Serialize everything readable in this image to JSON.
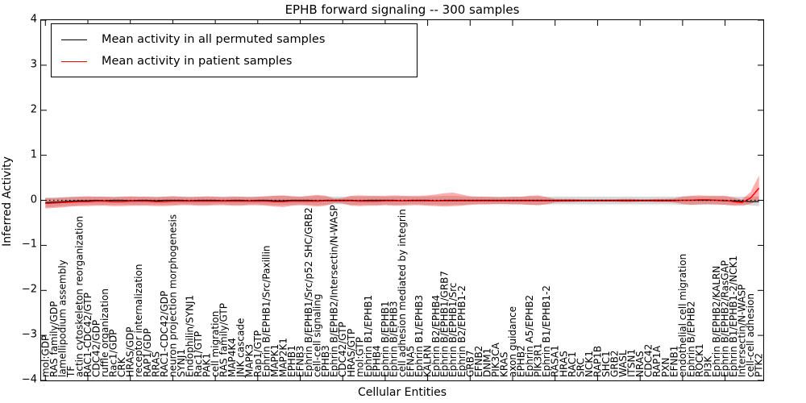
{
  "figure": {
    "title": "EPHB forward signaling -- 300 samples",
    "xlabel": "Cellular Entities",
    "ylabel": "Inferred Activity"
  },
  "legend": {
    "position": "upper left",
    "items": [
      {
        "label": "Mean activity in all permuted samples",
        "color": "#000000"
      },
      {
        "label": "Mean activity in patient samples",
        "color": "#ff0000"
      }
    ]
  },
  "chart_data": {
    "type": "line",
    "title": "EPHB forward signaling -- 300 samples",
    "xlabel": "Cellular Entities",
    "ylabel": "Inferred Activity",
    "ylim": [
      -4,
      4
    ],
    "yticks": [
      4,
      3,
      2,
      1,
      0,
      -1,
      -2,
      -3,
      -4
    ],
    "grid": false,
    "legend_position": "upper left",
    "zero_line": {
      "y": 0,
      "style": "dotted",
      "color": "#000000"
    },
    "xtick_step": 5,
    "categories": [
      "mol:GDP",
      "RAS family/GDP",
      "lamellipodium assembly",
      "TF",
      "actin cytoskeleton reorganization",
      "RAC1-CDC42/GTP",
      "CDC42/GDP",
      "ruffle organization",
      "Rac1/GDP",
      "CRK",
      "HRAS/GDP",
      "receptor internalization",
      "RAP1/GDP",
      "RRAS",
      "RAC1-CDC42/GDP",
      "neuron projection morphogenesis",
      "SYNJ1",
      "Endophilin/SYNJ1",
      "Rac1/GTP",
      "PAK1",
      "cell migration",
      "RAS family/GTP",
      "MAP4K4",
      "JNK cascade",
      "MAPK3",
      "Rap1/GTP",
      "Ephrin B/EPHB1/Src/Paxillin",
      "MAPK1",
      "MAP2K1",
      "EPHB1",
      "EFNB3",
      "Ephrin B/EPHB1/Src/p52 SHC/GRB2",
      "cell-cell signaling",
      "EPHB3",
      "Ephrin B/EPHB2/Intersectin/N-WASP",
      "CDC42/GTP",
      "HRAS/GTP",
      "mol:GTP",
      "Ephrin B1/EPHB1",
      "EPHB4",
      "Ephrin B/EPHB1",
      "Ephrin B/EPHB3",
      "cell adhesion mediated by integrin",
      "EFNA5",
      "Ephrin B1/EPHB3",
      "KALRN",
      "Ephrin B2/EPHB4",
      "Ephrin B/EPHB1/GRB7",
      "Ephrin B/EPHB1/Src",
      "Ephrin B2/EPHB1-2",
      "GRB7",
      "EFNB2",
      "DNM1",
      "PIK3CA",
      "KRAS",
      "axon guidance",
      "EPHB2",
      "Ephrin A5/EPHB2",
      "PIK3R1",
      "Ephrin B1/EPHB1-2",
      "RASA1",
      "HRAS",
      "RAC1",
      "SRC",
      "NCK1",
      "RAP1B",
      "SHC1",
      "GRB2",
      "WASL",
      "ITSN1",
      "NRAS",
      "CDC42",
      "RAP1A",
      "PXN",
      "EFNB1",
      "endothelial cell migration",
      "Ephrin B/EPHB2",
      "ROCK1",
      "PI3K",
      "Ephrin B/EPHB2/KALRN",
      "Ephrin B/EPHB2/RasGAP",
      "Ephrin B1/EPHB1-2/NCK1",
      "Intersectin/N-WASP",
      "cell-cell adhesion",
      "PTK2"
    ],
    "series": [
      {
        "name": "Mean activity in all permuted samples",
        "color": "#000000",
        "band_color": "rgba(125,125,125,0.30)",
        "values": [
          -0.05,
          -0.04,
          -0.03,
          -0.02,
          -0.01,
          -0.01,
          0,
          -0.01,
          0,
          0,
          -0.01,
          0,
          0,
          -0.01,
          0,
          0,
          0,
          -0.01,
          0,
          0,
          0,
          -0.01,
          0,
          0,
          -0.01,
          0,
          0,
          -0.01,
          -0.01,
          0,
          0,
          0,
          -0.01,
          0,
          0,
          0,
          0,
          -0.01,
          0,
          0,
          0,
          0,
          -0.01,
          0,
          0,
          0,
          -0.01,
          0,
          0,
          0,
          0,
          0,
          0,
          0,
          0,
          0,
          0,
          0,
          0,
          0,
          0,
          0,
          0,
          0,
          0,
          0,
          0,
          0,
          0,
          0,
          0,
          0,
          0,
          0,
          0,
          0,
          0,
          0,
          0,
          0,
          -0.01,
          -0.01,
          -0.02,
          -0.03,
          -0.03
        ],
        "band_upper": [
          0.06,
          0.06,
          0.07,
          0.08,
          0.08,
          0.08,
          0.08,
          0.08,
          0.08,
          0.08,
          0.08,
          0.08,
          0.08,
          0.08,
          0.08,
          0.09,
          0.08,
          0.08,
          0.08,
          0.08,
          0.08,
          0.08,
          0.09,
          0.08,
          0.08,
          0.08,
          0.09,
          0.1,
          0.1,
          0.09,
          0.08,
          0.09,
          0.1,
          0.09,
          0.08,
          0.08,
          0.09,
          0.09,
          0.09,
          0.09,
          0.08,
          0.09,
          0.09,
          0.08,
          0.08,
          0.09,
          0.09,
          0.1,
          0.1,
          0.09,
          0.08,
          0.08,
          0.08,
          0.08,
          0.08,
          0.08,
          0.08,
          0.09,
          0.09,
          0.08,
          0.08,
          0.08,
          0.08,
          0.08,
          0.08,
          0.08,
          0.08,
          0.08,
          0.08,
          0.08,
          0.08,
          0.08,
          0.08,
          0.08,
          0.08,
          0.09,
          0.09,
          0.09,
          0.09,
          0.09,
          0.09,
          0.08,
          0.08,
          0.08,
          0.08
        ],
        "band_lower": [
          -0.16,
          -0.15,
          -0.13,
          -0.12,
          -0.11,
          -0.1,
          -0.1,
          -0.1,
          -0.1,
          -0.1,
          -0.1,
          -0.1,
          -0.1,
          -0.1,
          -0.1,
          -0.1,
          -0.09,
          -0.09,
          -0.1,
          -0.1,
          -0.09,
          -0.09,
          -0.1,
          -0.1,
          -0.09,
          -0.09,
          -0.1,
          -0.11,
          -0.11,
          -0.1,
          -0.09,
          -0.1,
          -0.11,
          -0.1,
          -0.09,
          -0.09,
          -0.1,
          -0.1,
          -0.1,
          -0.1,
          -0.09,
          -0.1,
          -0.1,
          -0.09,
          -0.09,
          -0.1,
          -0.1,
          -0.11,
          -0.1,
          -0.1,
          -0.09,
          -0.09,
          -0.09,
          -0.09,
          -0.09,
          -0.09,
          -0.09,
          -0.1,
          -0.1,
          -0.09,
          -0.09,
          -0.09,
          -0.09,
          -0.09,
          -0.09,
          -0.09,
          -0.09,
          -0.09,
          -0.09,
          -0.09,
          -0.09,
          -0.09,
          -0.09,
          -0.09,
          -0.09,
          -0.1,
          -0.1,
          -0.1,
          -0.1,
          -0.1,
          -0.1,
          -0.1,
          -0.1,
          -0.11,
          -0.13
        ]
      },
      {
        "name": "Mean activity in patient samples",
        "color": "#ff0000",
        "band_color": "rgba(255,0,0,0.32)",
        "values": [
          -0.07,
          -0.06,
          -0.05,
          -0.04,
          -0.03,
          -0.03,
          -0.02,
          -0.02,
          -0.03,
          -0.03,
          -0.02,
          -0.02,
          -0.02,
          -0.03,
          -0.03,
          -0.02,
          -0.02,
          -0.02,
          -0.02,
          -0.02,
          -0.02,
          -0.02,
          -0.02,
          -0.02,
          -0.02,
          -0.02,
          -0.02,
          -0.03,
          -0.03,
          -0.02,
          -0.02,
          -0.02,
          -0.02,
          -0.01,
          -0.01,
          -0.01,
          -0.01,
          -0.02,
          -0.02,
          -0.02,
          -0.01,
          -0.01,
          -0.01,
          -0.01,
          -0.01,
          -0.01,
          -0.01,
          -0.01,
          -0.01,
          -0.01,
          -0.01,
          -0.01,
          -0.01,
          -0.01,
          -0.01,
          -0.01,
          -0.01,
          -0.01,
          -0.01,
          -0.01,
          -0.01,
          -0.01,
          -0.01,
          -0.01,
          -0.01,
          -0.01,
          -0.01,
          -0.01,
          -0.01,
          -0.01,
          -0.01,
          -0.01,
          -0.01,
          -0.01,
          -0.01,
          0,
          0,
          0.01,
          0.01,
          0,
          0,
          -0.03,
          -0.05,
          0.05,
          0.27
        ],
        "band_upper": [
          0.05,
          0.05,
          0.06,
          0.07,
          0.08,
          0.09,
          0.08,
          0.08,
          0.07,
          0.08,
          0.09,
          0.08,
          0.08,
          0.07,
          0.08,
          0.09,
          0.08,
          0.07,
          0.08,
          0.09,
          0.08,
          0.07,
          0.08,
          0.08,
          0.07,
          0.08,
          0.09,
          0.1,
          0.11,
          0.09,
          0.08,
          0.1,
          0.12,
          0.1,
          0.04,
          0.05,
          0.1,
          0.11,
          0.1,
          0.1,
          0.1,
          0.11,
          0.1,
          0.1,
          0.1,
          0.11,
          0.13,
          0.16,
          0.17,
          0.13,
          0.09,
          0.08,
          0.08,
          0.07,
          0.07,
          0.08,
          0.08,
          0.1,
          0.11,
          0.07,
          0.03,
          0.03,
          0.03,
          0.02,
          0.02,
          0.02,
          0.02,
          0.02,
          0.03,
          0.03,
          0.02,
          0.02,
          0.03,
          0.03,
          0.04,
          0.08,
          0.1,
          0.11,
          0.1,
          0.1,
          0.1,
          0.06,
          0.02,
          0.18,
          0.55
        ],
        "band_lower": [
          -0.18,
          -0.17,
          -0.16,
          -0.14,
          -0.13,
          -0.13,
          -0.12,
          -0.12,
          -0.13,
          -0.13,
          -0.12,
          -0.12,
          -0.12,
          -0.13,
          -0.13,
          -0.12,
          -0.11,
          -0.11,
          -0.12,
          -0.12,
          -0.11,
          -0.11,
          -0.12,
          -0.12,
          -0.11,
          -0.11,
          -0.12,
          -0.14,
          -0.15,
          -0.12,
          -0.11,
          -0.12,
          -0.14,
          -0.12,
          -0.06,
          -0.07,
          -0.12,
          -0.13,
          -0.12,
          -0.12,
          -0.11,
          -0.12,
          -0.12,
          -0.11,
          -0.11,
          -0.12,
          -0.13,
          -0.14,
          -0.13,
          -0.12,
          -0.1,
          -0.09,
          -0.09,
          -0.08,
          -0.08,
          -0.09,
          -0.09,
          -0.1,
          -0.11,
          -0.09,
          -0.05,
          -0.04,
          -0.04,
          -0.03,
          -0.03,
          -0.03,
          -0.03,
          -0.03,
          -0.04,
          -0.04,
          -0.03,
          -0.03,
          -0.04,
          -0.04,
          -0.05,
          -0.08,
          -0.1,
          -0.09,
          -0.08,
          -0.09,
          -0.1,
          -0.12,
          -0.12,
          -0.08,
          0
        ]
      }
    ]
  }
}
